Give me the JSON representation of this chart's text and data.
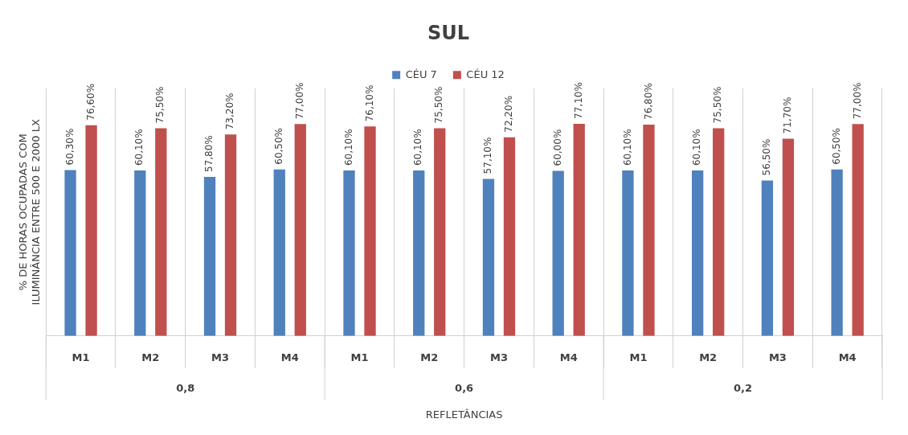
{
  "chart_data": {
    "type": "bar",
    "title": "SUL",
    "ylabel": "% DE HORAS OCUPADAS COM ILUMINÂNCIA ENTRE 500 E 2000 LX",
    "xlabel": "REFLETÂNCIAS",
    "categories": [
      "M1",
      "M2",
      "M3",
      "M4",
      "M1",
      "M2",
      "M3",
      "M4",
      "M1",
      "M2",
      "M3",
      "M4"
    ],
    "annotations": [
      "0,8",
      "0,6",
      "0,2"
    ],
    "series": [
      {
        "name": "CÉU 7",
        "color": "#4f81bd",
        "values": [
          60.3,
          60.1,
          57.8,
          60.5,
          60.1,
          60.1,
          57.1,
          60.0,
          60.1,
          60.1,
          56.5,
          60.5
        ],
        "value_labels": [
          "60,30%",
          "60,10%",
          "57,80%",
          "60,50%",
          "60,10%",
          "60,10%",
          "57,10%",
          "60,00%",
          "60,10%",
          "60,10%",
          "56,50%",
          "60,50%"
        ]
      },
      {
        "name": "CÉU 12",
        "color": "#c0504d",
        "values": [
          76.6,
          75.5,
          73.2,
          77.0,
          76.1,
          75.5,
          72.2,
          77.1,
          76.8,
          75.5,
          71.7,
          77.0
        ],
        "value_labels": [
          "76,60%",
          "75,50%",
          "73,20%",
          "77,00%",
          "76,10%",
          "75,50%",
          "72,20%",
          "77,10%",
          "76,80%",
          "75,50%",
          "71,70%",
          "77,00%"
        ]
      }
    ],
    "grid": "x",
    "legend": "top"
  }
}
